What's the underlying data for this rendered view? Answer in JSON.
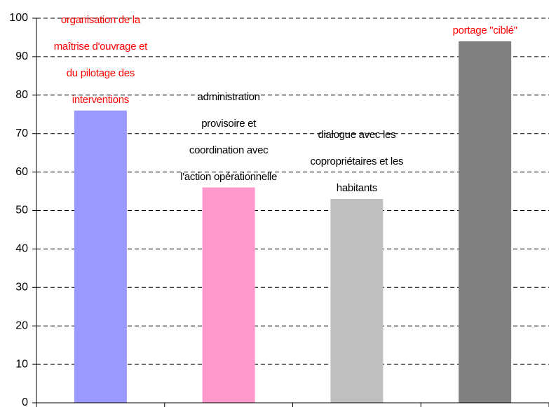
{
  "chart_data": {
    "type": "bar",
    "categories": [
      "organisation de la maîtrise d'ouvrage et du pilotage des interventions",
      "administration provisoire et coordination avec l'action opérationnelle",
      "dialogue avec les copropriétaires et les habitants",
      "portage \"ciblé\""
    ],
    "values": [
      76,
      56,
      53,
      94
    ],
    "colors": [
      "#9999ff",
      "#ff99cc",
      "#c0c0c0",
      "#808080"
    ],
    "label_colors": [
      "#ff0000",
      "#000000",
      "#000000",
      "#ff0000"
    ],
    "ylim": [
      0,
      100
    ],
    "yticks": [
      0,
      10,
      20,
      30,
      40,
      50,
      60,
      70,
      80,
      90,
      100
    ],
    "grid": true
  }
}
